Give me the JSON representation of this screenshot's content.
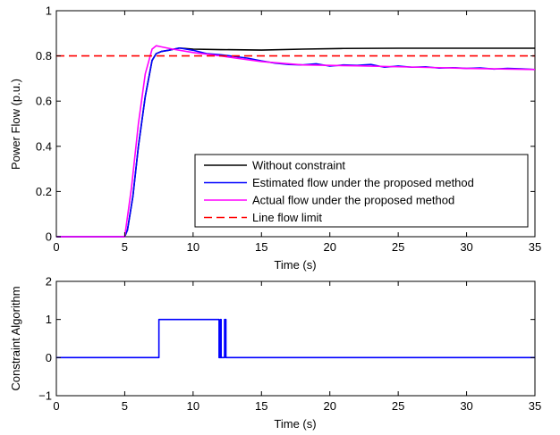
{
  "chart_data": [
    {
      "type": "line",
      "xlabel": "Time (s)",
      "ylabel": "Power Flow (p.u.)",
      "xlim": [
        0,
        35
      ],
      "ylim": [
        0,
        1
      ],
      "xticks": [
        "0",
        "5",
        "10",
        "15",
        "20",
        "25",
        "30",
        "35"
      ],
      "yticks": [
        "0",
        "0.2",
        "0.4",
        "0.6",
        "0.8",
        "1"
      ],
      "grid": false,
      "legend_position": "bottom-right",
      "series": [
        {
          "name": "Without constraint",
          "color": "#000000",
          "style": "solid",
          "x": [
            0,
            5,
            5.2,
            5.6,
            6.0,
            6.5,
            7.0,
            7.3,
            7.7,
            8.2,
            9.0,
            10,
            12,
            15,
            18,
            21,
            25,
            30,
            35
          ],
          "y": [
            0,
            0,
            0.03,
            0.18,
            0.4,
            0.62,
            0.78,
            0.81,
            0.82,
            0.825,
            0.835,
            0.83,
            0.828,
            0.826,
            0.83,
            0.833,
            0.834,
            0.834,
            0.834
          ]
        },
        {
          "name": "Estimated flow under the proposed method",
          "color": "#0000ff",
          "style": "solid",
          "x": [
            0,
            5,
            5.2,
            5.6,
            6.0,
            6.5,
            7.0,
            7.3,
            7.7,
            8.2,
            9.0,
            10,
            11,
            12,
            13,
            14,
            15,
            16,
            17,
            18,
            19,
            20,
            21,
            22,
            23,
            24,
            25,
            26,
            27,
            28,
            29,
            30,
            31,
            32,
            33,
            34,
            35
          ],
          "y": [
            0,
            0,
            0.03,
            0.18,
            0.4,
            0.62,
            0.78,
            0.81,
            0.82,
            0.825,
            0.835,
            0.825,
            0.81,
            0.805,
            0.798,
            0.79,
            0.778,
            0.768,
            0.762,
            0.76,
            0.765,
            0.755,
            0.76,
            0.758,
            0.762,
            0.75,
            0.755,
            0.75,
            0.752,
            0.746,
            0.748,
            0.745,
            0.747,
            0.742,
            0.745,
            0.743,
            0.74
          ]
        },
        {
          "name": "Actual flow under the proposed method",
          "color": "#ff00ff",
          "style": "solid",
          "x": [
            0,
            5,
            5.5,
            6.0,
            6.5,
            7.0,
            7.3,
            7.7,
            8.5,
            10,
            12,
            15,
            18,
            20,
            22,
            25,
            28,
            30,
            32,
            35
          ],
          "y": [
            0,
            0,
            0.22,
            0.5,
            0.72,
            0.83,
            0.845,
            0.84,
            0.83,
            0.815,
            0.8,
            0.775,
            0.76,
            0.758,
            0.756,
            0.752,
            0.748,
            0.745,
            0.743,
            0.74
          ]
        },
        {
          "name": "Line flow limit",
          "color": "#ff0000",
          "style": "dashed",
          "x": [
            0,
            35
          ],
          "y": [
            0.8,
            0.8
          ]
        }
      ]
    },
    {
      "type": "line",
      "xlabel": "Time (s)",
      "ylabel": "Constraint Algorithm",
      "xlim": [
        0,
        35
      ],
      "ylim": [
        -1,
        2
      ],
      "xticks": [
        "0",
        "5",
        "10",
        "15",
        "20",
        "25",
        "30",
        "35"
      ],
      "yticks": [
        "−1",
        "0",
        "1",
        "2"
      ],
      "grid": false,
      "series": [
        {
          "color": "#0000ff",
          "style": "step",
          "x": [
            0,
            7.5,
            7.5,
            11.9,
            11.9,
            12.0,
            12.0,
            12.05,
            12.05,
            12.3,
            12.3,
            12.4,
            12.4,
            35
          ],
          "y": [
            0,
            0,
            1,
            1,
            0,
            0,
            1,
            1,
            0,
            0,
            1,
            1,
            0,
            0
          ]
        }
      ]
    }
  ]
}
